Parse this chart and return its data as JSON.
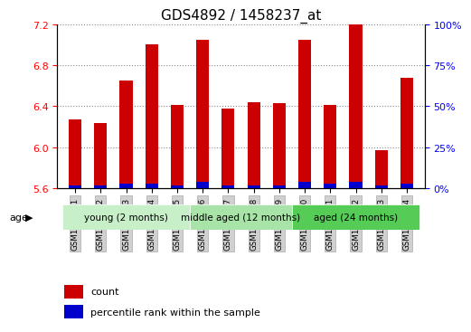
{
  "title": "GDS4892 / 1458237_at",
  "samples": [
    "GSM1230351",
    "GSM1230352",
    "GSM1230353",
    "GSM1230354",
    "GSM1230355",
    "GSM1230356",
    "GSM1230357",
    "GSM1230358",
    "GSM1230359",
    "GSM1230360",
    "GSM1230361",
    "GSM1230362",
    "GSM1230363",
    "GSM1230364"
  ],
  "count_values": [
    6.27,
    6.24,
    6.65,
    7.0,
    6.41,
    7.05,
    6.38,
    6.44,
    6.43,
    7.05,
    6.41,
    7.2,
    5.97,
    6.68
  ],
  "percentile_values": [
    2,
    2,
    3,
    3,
    2,
    4,
    2,
    2,
    2,
    4,
    3,
    4,
    2,
    3
  ],
  "y_min": 5.6,
  "y_max": 7.2,
  "y_ticks": [
    5.6,
    6.0,
    6.4,
    6.8,
    7.2
  ],
  "right_y_ticks": [
    0,
    25,
    50,
    75,
    100
  ],
  "bar_color": "#cc0000",
  "percentile_color": "#0000cc",
  "bg_color": "#cccccc",
  "plot_bg": "#ffffff",
  "groups": [
    {
      "label": "young (2 months)",
      "start": 0,
      "end": 4
    },
    {
      "label": "middle aged (12 months)",
      "start": 5,
      "end": 8
    },
    {
      "label": "aged (24 months)",
      "start": 9,
      "end": 13
    }
  ],
  "group_bg_colors": [
    "#c8f0c8",
    "#a8e4a8",
    "#55cc55"
  ],
  "bar_width": 0.5,
  "title_fontsize": 11,
  "tick_fontsize": 8,
  "label_fontsize": 8
}
